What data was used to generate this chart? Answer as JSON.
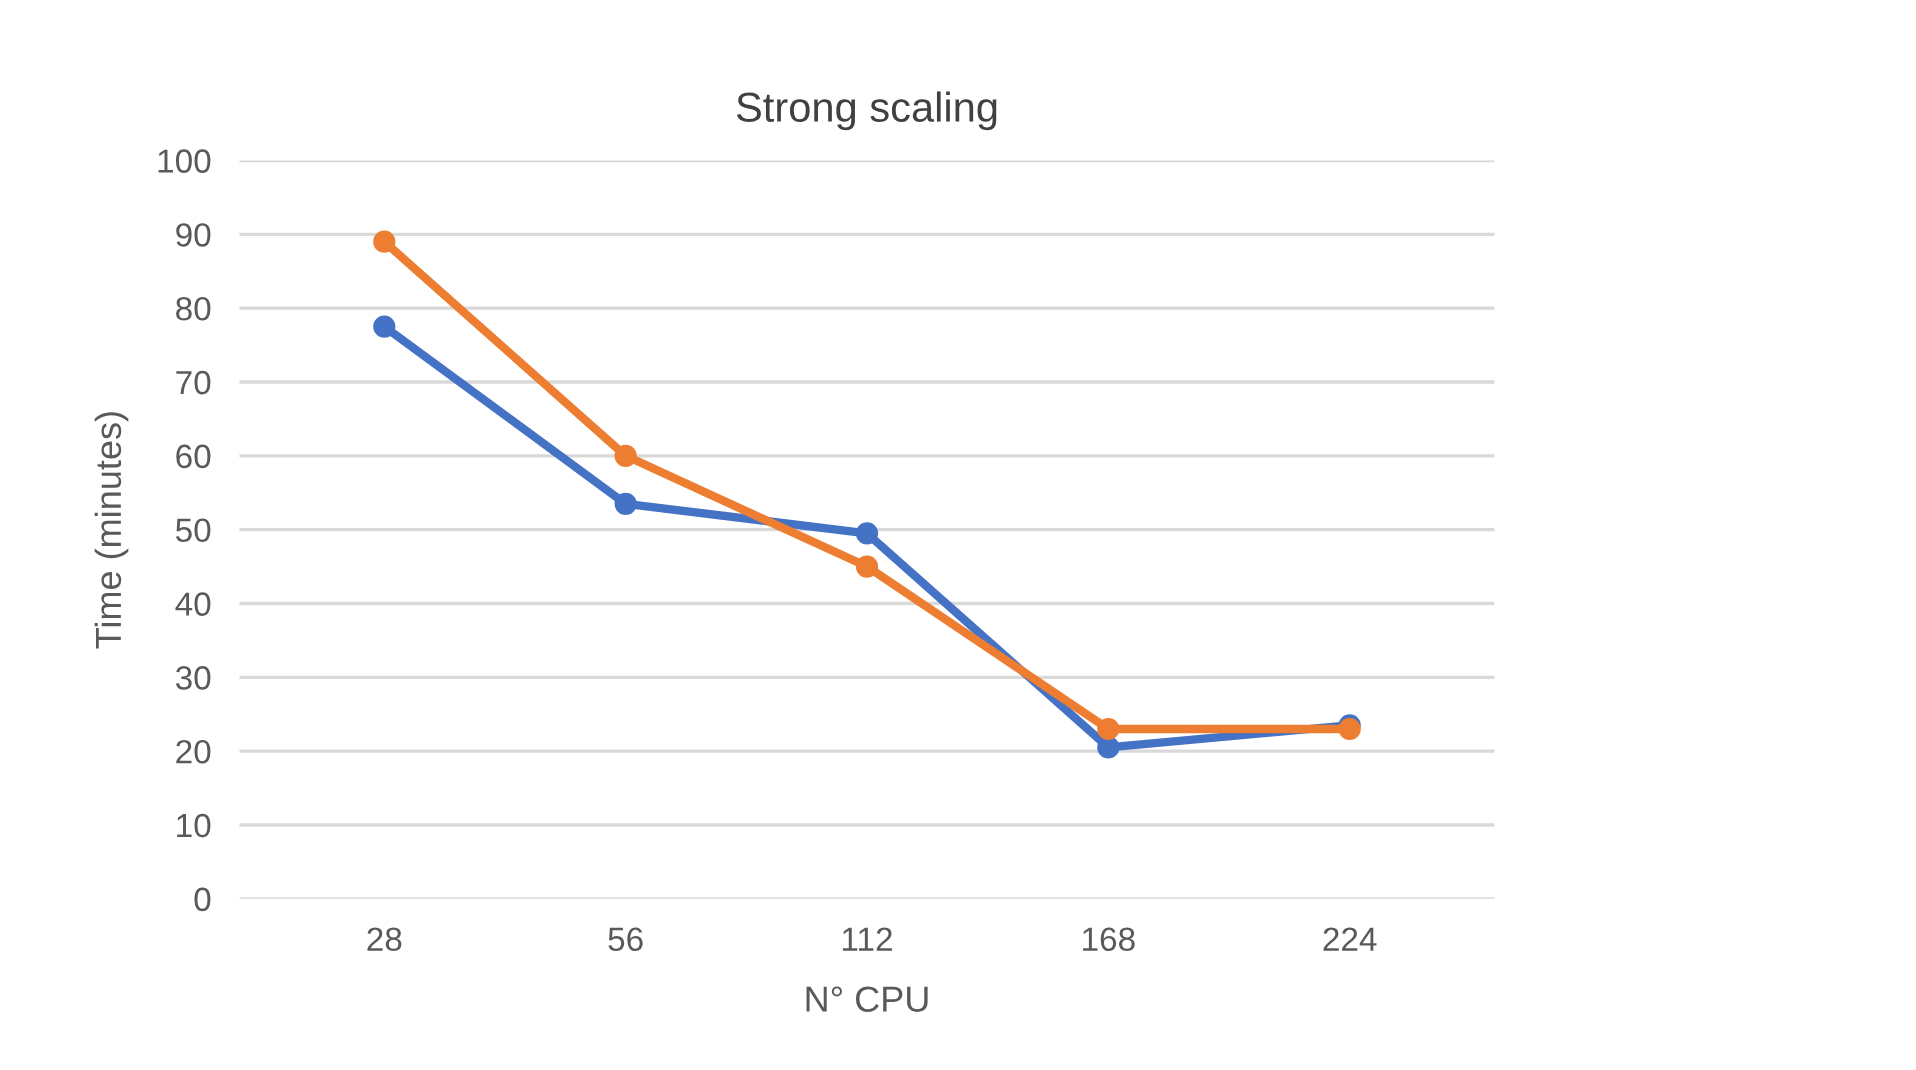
{
  "chart_data": {
    "type": "line",
    "title": "Strong scaling",
    "xlabel": "N° CPU",
    "ylabel": "Time (minutes)",
    "categories": [
      "28",
      "56",
      "112",
      "168",
      "224"
    ],
    "series": [
      {
        "color": "#4472c4",
        "values": [
          77.5,
          53.5,
          49.5,
          20.5,
          23.5
        ]
      },
      {
        "color": "#ed7d31",
        "values": [
          89,
          60,
          45,
          23,
          23
        ]
      }
    ],
    "ylim": [
      0,
      100
    ],
    "yticks": [
      0,
      10,
      20,
      30,
      40,
      50,
      60,
      70,
      80,
      90,
      100
    ],
    "grid": "y",
    "marker": "circle",
    "line_style": "solid"
  }
}
